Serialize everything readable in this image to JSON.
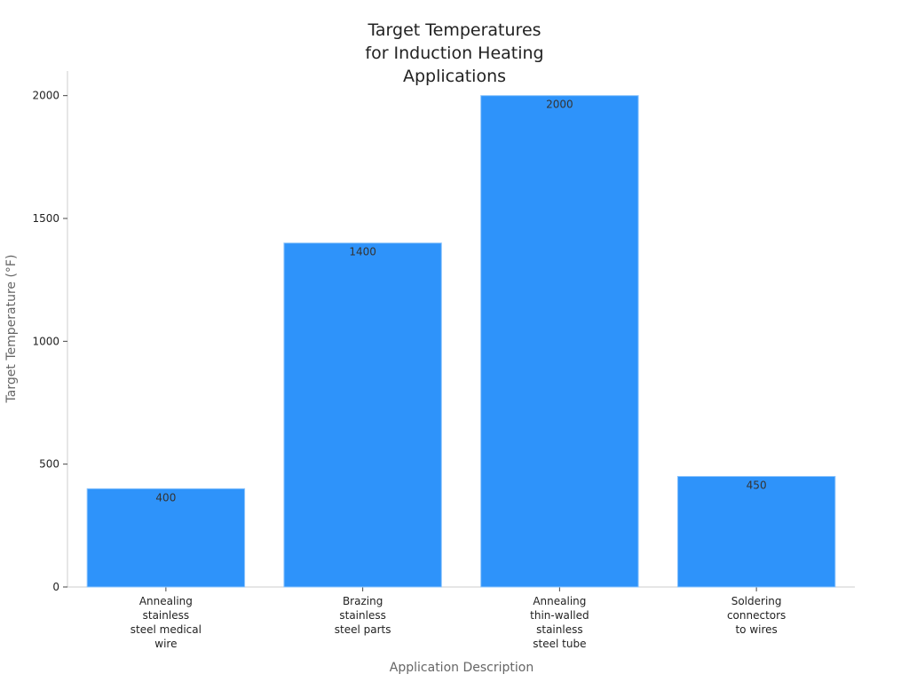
{
  "chart_data": {
    "type": "bar",
    "title": "Target Temperatures\nfor Induction Heating\nApplications",
    "x_label": "Application Description",
    "y_label": "Target Temperature (°F)",
    "categories": [
      "Annealing\nstainless\nsteel medical\nwire",
      "Brazing\nstainless\nsteel parts",
      "Annealing\nthin-walled\nstainless\nsteel tube",
      "Soldering\nconnectors\nto wires"
    ],
    "values": [
      400,
      1400,
      2000,
      450
    ],
    "color": "#2e93fa",
    "ylim": [
      0,
      2100
    ],
    "yticks": [
      0,
      500,
      1000,
      1500,
      2000
    ],
    "grid": false
  }
}
